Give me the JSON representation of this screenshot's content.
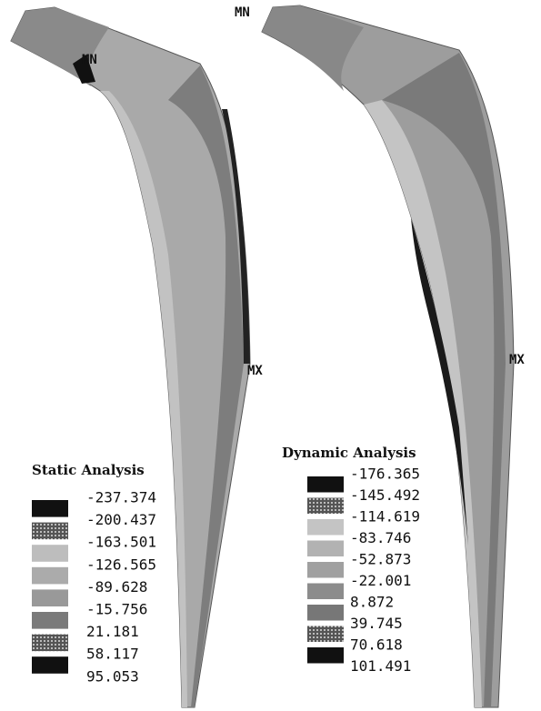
{
  "panels": [
    {
      "title": "Static Analysis",
      "min_label": "MN",
      "max_label": "MX",
      "legend": [
        "-237.374",
        "-200.437",
        "-163.501",
        "-126.565",
        "-89.628",
        "-15.756",
        "21.181",
        "58.117",
        "95.053"
      ]
    },
    {
      "title": "Dynamic Analysis",
      "min_label": "MN",
      "max_label": "MX",
      "legend": [
        "-176.365",
        "-145.492",
        "-114.619",
        "-83.746",
        "-52.873",
        "-22.001",
        "8.872",
        "39.745",
        "70.618",
        "101.491"
      ]
    }
  ]
}
